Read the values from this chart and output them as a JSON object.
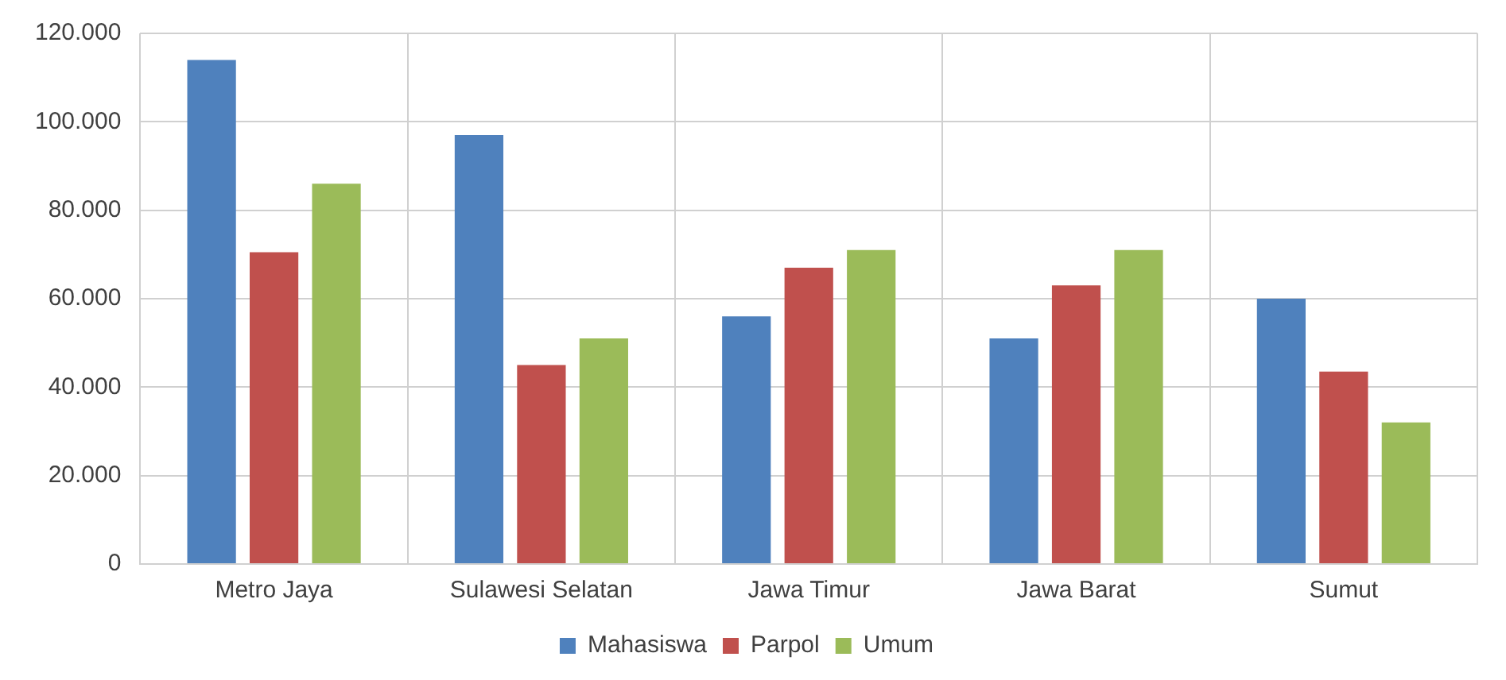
{
  "chart_data": {
    "type": "bar",
    "categories": [
      "Metro Jaya",
      "Sulawesi Selatan",
      "Jawa Timur",
      "Jawa Barat",
      "Sumut"
    ],
    "series": [
      {
        "name": "Mahasiswa",
        "color": "#4f81bd",
        "values": [
          114000,
          97000,
          56000,
          51000,
          60000
        ]
      },
      {
        "name": "Parpol",
        "color": "#c0504d",
        "values": [
          70500,
          45000,
          67000,
          63000,
          43500
        ]
      },
      {
        "name": "Umum",
        "color": "#9bbb59",
        "values": [
          86000,
          51000,
          71000,
          71000,
          32000
        ]
      }
    ],
    "ylim": [
      0,
      120000
    ],
    "yticks": [
      {
        "value": 0,
        "label": "0"
      },
      {
        "value": 20000,
        "label": "20.000"
      },
      {
        "value": 40000,
        "label": "40.000"
      },
      {
        "value": 60000,
        "label": "60.000"
      },
      {
        "value": 80000,
        "label": "80.000"
      },
      {
        "value": 100000,
        "label": "100.000"
      },
      {
        "value": 120000,
        "label": "120.000"
      }
    ],
    "grid": true,
    "legend": "bottom"
  }
}
